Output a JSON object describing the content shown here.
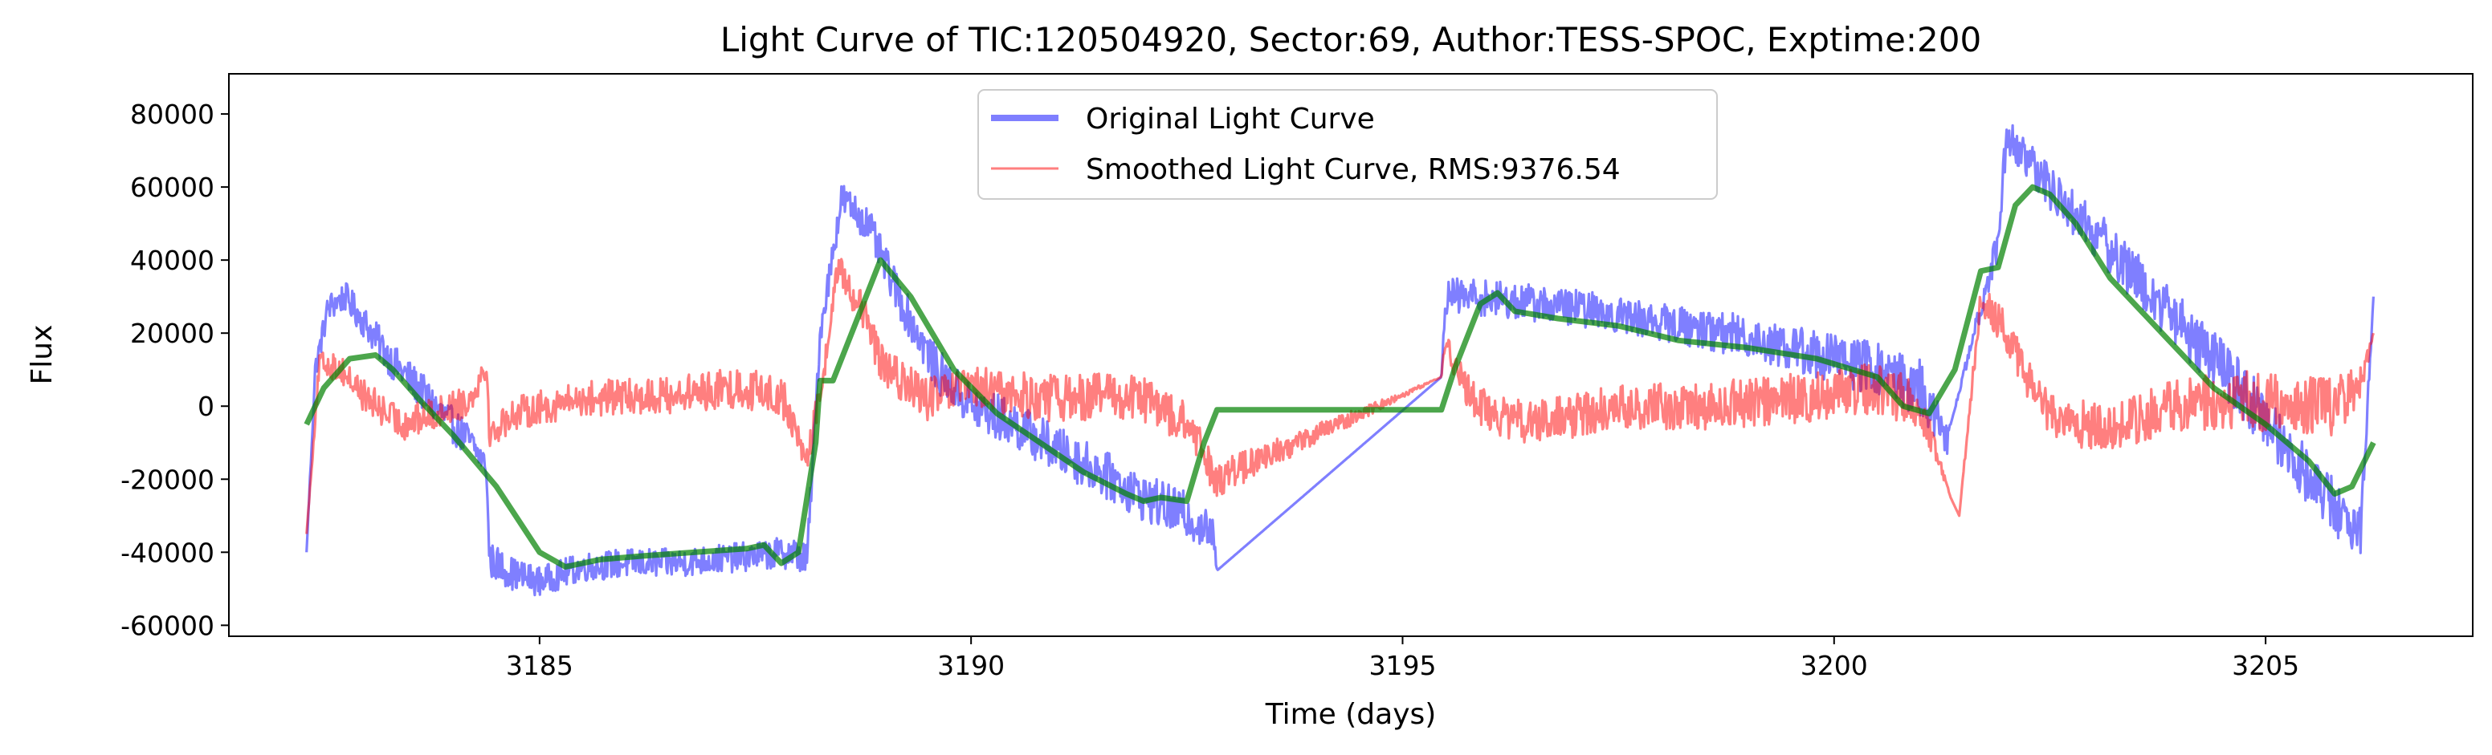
{
  "chart_data": {
    "type": "line",
    "title": "Light Curve of TIC:120504920, Sector:69, Author:TESS-SPOC, Exptime:200",
    "xlabel": "Time (days)",
    "ylabel": "Flux",
    "xlim": [
      3181.4,
      3207.4
    ],
    "ylim": [
      -63000,
      91000
    ],
    "xticks": [
      3185,
      3190,
      3195,
      3200,
      3205
    ],
    "yticks": [
      -60000,
      -40000,
      -20000,
      0,
      20000,
      40000,
      60000,
      80000
    ],
    "grid": false,
    "legend": {
      "placement": "upper-center",
      "entries": [
        "Original Light Curve",
        "Smoothed Light Curve, RMS:9376.54"
      ]
    },
    "series": [
      {
        "name": "Original Light Curve",
        "color": "#0000ff",
        "alpha": 0.5,
        "style": "noisy",
        "x": [
          3182.3,
          3182.4,
          3182.55,
          3182.75,
          3183.0,
          3183.3,
          3183.6,
          3183.9,
          3184.2,
          3184.38,
          3184.42,
          3184.7,
          3185.0,
          3185.5,
          3186.0,
          3186.5,
          3187.0,
          3187.5,
          3187.9,
          3188.1,
          3188.25,
          3188.5,
          3188.8,
          3189.2,
          3189.6,
          3190.0,
          3190.5,
          3191.0,
          3191.5,
          3192.0,
          3192.5,
          3192.8,
          3192.85,
          3195.45,
          3195.5,
          3195.8,
          3196.2,
          3196.6,
          3197.0,
          3197.5,
          3198.0,
          3198.5,
          3199.0,
          3199.5,
          3200.0,
          3200.5,
          3201.0,
          3201.3,
          3201.35,
          3201.9,
          3202.0,
          3202.3,
          3202.7,
          3203.2,
          3203.7,
          3204.2,
          3204.7,
          3205.2,
          3205.7,
          3206.1,
          3206.25
        ],
        "y": [
          -40000,
          10000,
          27000,
          30000,
          22000,
          12000,
          5000,
          -3000,
          -10000,
          -16000,
          -42000,
          -46000,
          -48000,
          -44000,
          -43000,
          -43000,
          -42000,
          -41000,
          -40000,
          -42000,
          20000,
          57000,
          50000,
          28000,
          10000,
          0,
          -5000,
          -12000,
          -18000,
          -25000,
          -30000,
          -35000,
          -45000,
          8000,
          30000,
          30000,
          29000,
          28000,
          27000,
          25000,
          23000,
          21000,
          19000,
          16000,
          13000,
          10000,
          5000,
          -10000,
          -5000,
          45000,
          75000,
          65000,
          55000,
          43000,
          30000,
          18000,
          5000,
          -10000,
          -25000,
          -35000,
          30000
        ],
        "amp": [
          0,
          3000,
          4000,
          4000,
          4500,
          5000,
          5000,
          5000,
          5000,
          3000,
          5000,
          4500,
          4000,
          4000,
          4000,
          4000,
          4000,
          4000,
          4500,
          4500,
          4000,
          4500,
          5000,
          5500,
          6000,
          6500,
          6500,
          6500,
          6500,
          6500,
          6500,
          5000,
          0,
          0,
          5000,
          5000,
          5000,
          5000,
          5000,
          5000,
          5000,
          5500,
          6000,
          6500,
          7000,
          7500,
          8000,
          6000,
          0,
          5000,
          6000,
          6000,
          6500,
          7000,
          7500,
          8000,
          8000,
          8000,
          8000,
          7000,
          0
        ]
      },
      {
        "name": "Smoothed Light Curve, RMS:9376.54",
        "color": "#ff0000",
        "alpha": 0.5,
        "style": "noisy",
        "x": [
          3182.3,
          3182.45,
          3182.7,
          3183.0,
          3183.4,
          3183.8,
          3184.2,
          3184.38,
          3184.42,
          3184.7,
          3185.5,
          3186.5,
          3187.3,
          3187.8,
          3188.1,
          3188.3,
          3188.45,
          3188.7,
          3189.0,
          3189.5,
          3190.0,
          3190.5,
          3191.0,
          3191.5,
          3192.0,
          3192.5,
          3192.85,
          3195.45,
          3195.5,
          3195.7,
          3196.0,
          3196.5,
          3197.5,
          3198.5,
          3199.5,
          3200.5,
          3201.0,
          3201.35,
          3201.45,
          3201.7,
          3202.0,
          3202.4,
          3202.8,
          3203.3,
          3204.0,
          3204.7,
          3205.3,
          3205.8,
          3206.1,
          3206.25
        ],
        "y": [
          -35000,
          12000,
          10000,
          2000,
          -5000,
          -2000,
          2000,
          12000,
          -8000,
          -2000,
          2000,
          3000,
          5000,
          3000,
          -15000,
          10000,
          38000,
          28000,
          10000,
          2000,
          5000,
          3000,
          2000,
          3000,
          2000,
          -5000,
          -20000,
          8000,
          20000,
          5000,
          -2000,
          -5000,
          0,
          0,
          2000,
          5000,
          0,
          -25000,
          -30000,
          30000,
          20000,
          0,
          -5000,
          -5000,
          0,
          2000,
          0,
          0,
          5000,
          20000
        ],
        "amp": [
          0,
          3000,
          4000,
          4500,
          4500,
          4500,
          4500,
          4000,
          4000,
          4500,
          5000,
          5000,
          5500,
          6000,
          4000,
          4000,
          4000,
          5000,
          5500,
          6000,
          6000,
          6500,
          6500,
          6500,
          6500,
          6000,
          5000,
          0,
          4000,
          5000,
          5500,
          6000,
          6000,
          6500,
          7000,
          7500,
          6000,
          0,
          0,
          4000,
          5500,
          6000,
          6500,
          7000,
          7500,
          8000,
          8000,
          8000,
          6000,
          0
        ]
      },
      {
        "name": "",
        "color": "#008000",
        "alpha": 0.7,
        "style": "smooth",
        "x": [
          3182.3,
          3182.5,
          3182.8,
          3183.1,
          3183.3,
          3183.6,
          3184.0,
          3184.5,
          3185.0,
          3185.3,
          3185.7,
          3186.2,
          3186.8,
          3187.4,
          3187.6,
          3187.8,
          3188.0,
          3188.2,
          3188.25,
          3188.4,
          3188.7,
          3188.95,
          3189.3,
          3189.8,
          3190.3,
          3190.8,
          3191.3,
          3191.8,
          3192.0,
          3192.2,
          3192.5,
          3192.7,
          3192.85,
          3195.45,
          3195.6,
          3195.9,
          3196.1,
          3196.3,
          3196.8,
          3197.5,
          3198.2,
          3199.0,
          3199.8,
          3200.5,
          3200.8,
          3201.1,
          3201.4,
          3201.7,
          3201.9,
          3202.1,
          3202.3,
          3202.5,
          3202.8,
          3203.2,
          3203.8,
          3204.4,
          3205.0,
          3205.5,
          3205.8,
          3206.0,
          3206.25
        ],
        "y": [
          -5000,
          5000,
          13000,
          14000,
          10000,
          2000,
          -8000,
          -22000,
          -40000,
          -44000,
          -42000,
          -41000,
          -40000,
          -39000,
          -38000,
          -43000,
          -40000,
          -10000,
          7000,
          7000,
          25000,
          40000,
          30000,
          10000,
          -2000,
          -10000,
          -18000,
          -24000,
          -26000,
          -25000,
          -26000,
          -10000,
          -1000,
          -1000,
          10000,
          28000,
          31000,
          26000,
          24000,
          22000,
          18000,
          16000,
          13000,
          8000,
          0,
          -2000,
          10000,
          37000,
          38000,
          55000,
          60000,
          58000,
          50000,
          35000,
          20000,
          5000,
          -5000,
          -15000,
          -24000,
          -22000,
          -10000
        ],
        "amp": []
      }
    ]
  }
}
